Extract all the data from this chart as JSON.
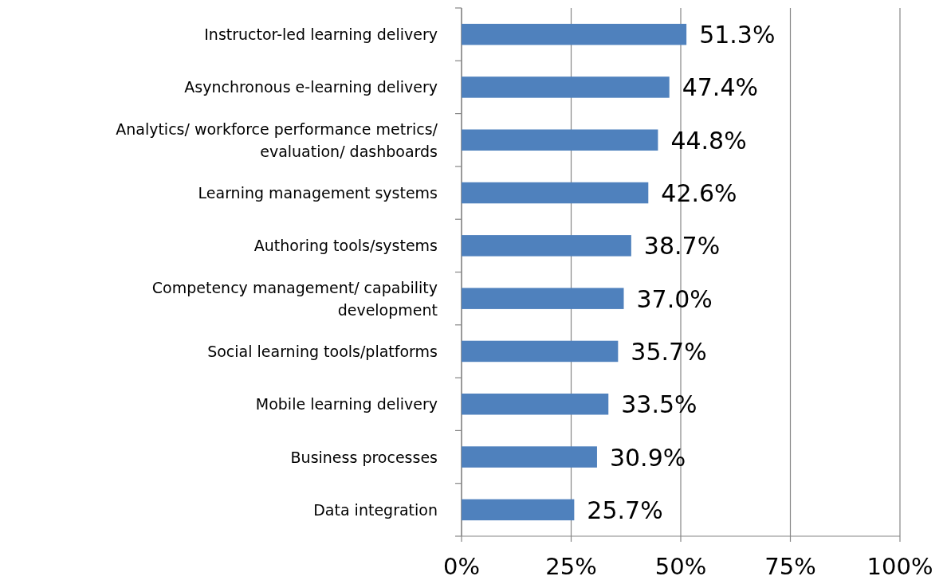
{
  "chart_data": {
    "type": "bar",
    "orientation": "horizontal",
    "categories": [
      "Instructor-led learning delivery",
      "Asynchronous e-learning delivery",
      "Analytics/ workforce performance metrics/ evaluation/ dashboards",
      "Learning management systems",
      "Authoring tools/systems",
      "Competency management/ capability development",
      "Social learning tools/platforms",
      "Mobile learning delivery",
      "Business processes",
      "Data integration"
    ],
    "values": [
      51.3,
      47.4,
      44.8,
      42.6,
      38.7,
      37.0,
      35.7,
      33.5,
      30.9,
      25.7
    ],
    "value_labels": [
      "51.3%",
      "47.4%",
      "44.8%",
      "42.6%",
      "38.7%",
      "37.0%",
      "35.7%",
      "33.5%",
      "30.9%",
      "25.7%"
    ],
    "color": "#4f81bd",
    "xlim": [
      0,
      100
    ],
    "xticks": [
      {
        "value": 0,
        "label": "0%"
      },
      {
        "value": 25,
        "label": "25%"
      },
      {
        "value": 50,
        "label": "50%"
      },
      {
        "value": 75,
        "label": "75%"
      },
      {
        "value": 100,
        "label": "100%"
      }
    ],
    "grid": "x"
  }
}
